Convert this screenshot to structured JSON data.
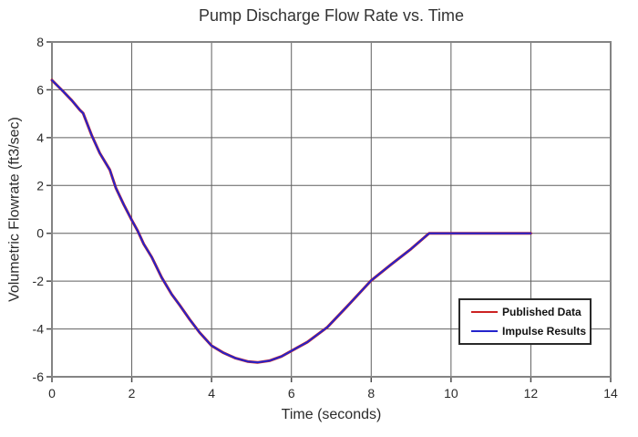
{
  "page": {
    "background_color": "#ffffff"
  },
  "chart_data": {
    "type": "line",
    "title": "Pump Discharge Flow Rate vs. Time",
    "xlabel": "Time (seconds)",
    "ylabel": "Volumetric Flowrate (ft3/sec)",
    "xlim": [
      0,
      14
    ],
    "ylim": [
      -6,
      8
    ],
    "xticks": [
      0,
      2,
      4,
      6,
      8,
      10,
      12,
      14
    ],
    "yticks": [
      -6,
      -4,
      -2,
      0,
      2,
      4,
      6,
      8
    ],
    "grid": true,
    "grid_color": "#5f5f5f",
    "border_color": "#848484",
    "tick_color": "#4a4a4a",
    "legend": {
      "position": "inside-right",
      "entries": [
        "Published Data",
        "Impulse Results"
      ]
    },
    "series": [
      {
        "name": "Published Data",
        "color": "#cc2222",
        "x": [
          0,
          0.15,
          0.3,
          0.5,
          0.7,
          0.78,
          1.0,
          1.2,
          1.45,
          1.6,
          1.8,
          2.0,
          2.15,
          2.3,
          2.5,
          2.75,
          3.0,
          3.2,
          3.45,
          3.7,
          4.0,
          4.3,
          4.6,
          4.9,
          5.15,
          5.45,
          5.75,
          6.05,
          6.4,
          6.9,
          7.4,
          8.0,
          8.5,
          9.0,
          9.45,
          10.0,
          11.0,
          12.0
        ],
        "y": [
          6.4,
          6.15,
          5.9,
          5.55,
          5.15,
          5.02,
          4.08,
          3.35,
          2.65,
          1.9,
          1.2,
          0.55,
          0.1,
          -0.45,
          -1.0,
          -1.85,
          -2.55,
          -3.0,
          -3.6,
          -4.15,
          -4.7,
          -5.0,
          -5.22,
          -5.36,
          -5.4,
          -5.33,
          -5.15,
          -4.87,
          -4.55,
          -3.93,
          -3.05,
          -1.97,
          -1.3,
          -0.65,
          0.0,
          0.0,
          0.0,
          0.0
        ]
      },
      {
        "name": "Impulse Results",
        "color": "#2424cc",
        "x": [
          0,
          0.15,
          0.3,
          0.5,
          0.7,
          0.78,
          1.0,
          1.2,
          1.45,
          1.6,
          1.8,
          2.0,
          2.15,
          2.3,
          2.5,
          2.75,
          3.0,
          3.2,
          3.45,
          3.7,
          4.0,
          4.3,
          4.6,
          4.9,
          5.15,
          5.45,
          5.75,
          6.05,
          6.4,
          6.9,
          7.4,
          8.0,
          8.5,
          9.0,
          9.45,
          10.0,
          11.0,
          12.0
        ],
        "y": [
          6.4,
          6.15,
          5.9,
          5.55,
          5.15,
          5.02,
          4.08,
          3.35,
          2.65,
          1.9,
          1.2,
          0.55,
          0.1,
          -0.45,
          -1.0,
          -1.85,
          -2.55,
          -3.0,
          -3.6,
          -4.15,
          -4.7,
          -5.0,
          -5.22,
          -5.36,
          -5.4,
          -5.33,
          -5.15,
          -4.87,
          -4.55,
          -3.93,
          -3.05,
          -1.97,
          -1.3,
          -0.65,
          0.0,
          0.0,
          0.0,
          0.0
        ]
      }
    ]
  }
}
